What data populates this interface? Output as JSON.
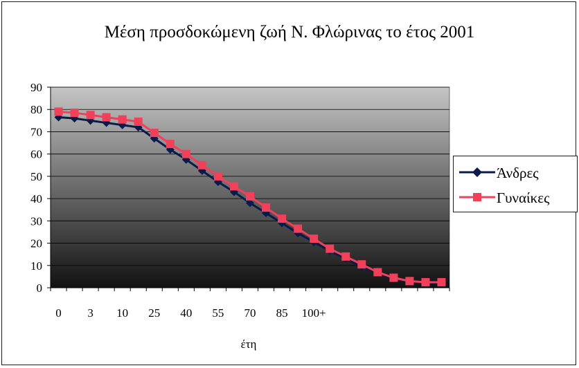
{
  "chart_data": {
    "type": "line",
    "title": "Μέση προσδοκώμενη ζωή Ν. Φλώρινας το έτος 2001",
    "xlabel": "έτη",
    "ylabel": "",
    "ylim": [
      0,
      90
    ],
    "yticks": [
      0,
      10,
      20,
      30,
      40,
      50,
      60,
      70,
      80,
      90
    ],
    "x_tick_labels": [
      "0",
      "3",
      "10",
      "25",
      "40",
      "55",
      "70",
      "85",
      "100+"
    ],
    "x_tick_indices": [
      0,
      2,
      4,
      6,
      8,
      10,
      12,
      14,
      16
    ],
    "grid": true,
    "legend_position": "right",
    "series": [
      {
        "name": "Άνδρες",
        "color": "#0a1a4a",
        "marker": "diamond",
        "values": [
          76.5,
          76,
          75,
          74,
          73,
          72,
          67,
          62,
          57.5,
          52.5,
          47.5,
          43,
          38,
          33.5,
          29,
          24.5,
          20.5,
          16.5,
          13,
          9.5,
          6.5,
          4,
          2.5,
          2,
          2
        ]
      },
      {
        "name": "Γυναίκες",
        "color": "#f0405a",
        "marker": "square",
        "values": [
          79,
          78.5,
          77.5,
          76.5,
          75.5,
          74.5,
          69.5,
          64.5,
          60,
          55,
          50,
          45.5,
          41,
          36,
          31,
          26.5,
          22,
          17.5,
          14,
          10.5,
          7,
          4.5,
          3,
          2.5,
          2.5
        ]
      }
    ]
  }
}
